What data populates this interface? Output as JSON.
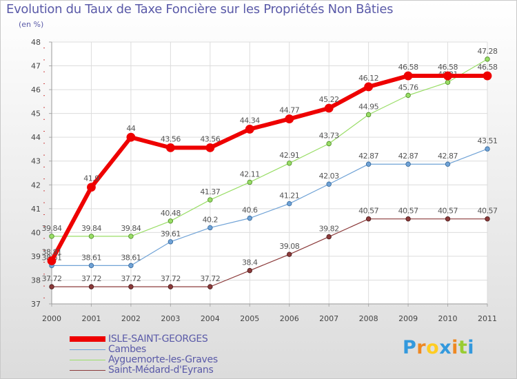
{
  "header": {
    "title": "Evolution du Taux de Taxe Foncière sur les Propriétés Non Bâties",
    "unit": "(en %)"
  },
  "chart_data": {
    "type": "line",
    "title": "Evolution du Taux de Taxe Foncière sur les Propriétés Non Bâties",
    "ylabel": "(en %)",
    "xlabel": "",
    "ylim": [
      37,
      48
    ],
    "yticks": [
      37,
      38,
      39,
      40,
      41,
      42,
      43,
      44,
      45,
      46,
      47,
      48
    ],
    "categories": [
      "2000",
      "2001",
      "2002",
      "2003",
      "2004",
      "2005",
      "2006",
      "2007",
      "2008",
      "2009",
      "2010",
      "2011"
    ],
    "grid": true,
    "series": [
      {
        "name": "ISLE-SAINT-GEORGES",
        "color": "#ee0000",
        "values": [
          38.81,
          41.9,
          44,
          43.56,
          43.56,
          44.34,
          44.77,
          45.22,
          46.12,
          46.58,
          46.58,
          46.58
        ],
        "labels": [
          "38.81",
          "41.9",
          "44",
          "43.56",
          "43.56",
          "44.34",
          "44.77",
          "45.22",
          "46.12",
          "46.58",
          "46.58",
          "46.58"
        ]
      },
      {
        "name": "Cambes",
        "color": "#6fa2d6",
        "values": [
          38.61,
          38.61,
          38.61,
          39.61,
          40.2,
          40.6,
          41.21,
          42.03,
          42.87,
          42.87,
          42.87,
          43.51
        ],
        "labels": [
          "38.61",
          "38.61",
          "38.61",
          "39.61",
          "40.2",
          "40.6",
          "41.21",
          "42.03",
          "42.87",
          "42.87",
          "42.87",
          "43.51"
        ]
      },
      {
        "name": "Ayguemorte-les-Graves",
        "color": "#99dd66",
        "values": [
          39.84,
          39.84,
          39.84,
          40.48,
          41.37,
          42.11,
          42.91,
          43.73,
          44.95,
          45.76,
          46.31,
          47.28
        ],
        "labels": [
          "39.84",
          "39.84",
          "39.84",
          "40.48",
          "41.37",
          "42.11",
          "42.91",
          "43.73",
          "44.95",
          "45.76",
          "46.31",
          "47.28"
        ]
      },
      {
        "name": "Saint-Médard-d'Eyrans",
        "color": "#8b3a3a",
        "values": [
          37.72,
          37.72,
          37.72,
          37.72,
          37.72,
          38.4,
          39.08,
          39.82,
          40.57,
          40.57,
          40.57,
          40.57
        ],
        "labels": [
          "37.72",
          "37.72",
          "37.72",
          "37.72",
          "37.72",
          "38.4",
          "39.08",
          "39.82",
          "40.57",
          "40.57",
          "40.57",
          "40.57"
        ]
      }
    ]
  },
  "legend": {
    "items": [
      {
        "label": "ISLE-SAINT-GEORGES",
        "color": "#ee0000"
      },
      {
        "label": "Cambes",
        "color": "#6fa2d6"
      },
      {
        "label": "Ayguemorte-les-Graves",
        "color": "#99dd66"
      },
      {
        "label": "Saint-Médard-d'Eyrans",
        "color": "#8b3a3a"
      }
    ]
  },
  "logo": {
    "letters": [
      "P",
      "r",
      "o",
      "x",
      "i",
      "t",
      "i"
    ],
    "colors": [
      "#3399dd",
      "#ee8822",
      "#ffcc22",
      "#3399dd",
      "#ee8822",
      "#99cc33",
      "#3399dd"
    ]
  }
}
